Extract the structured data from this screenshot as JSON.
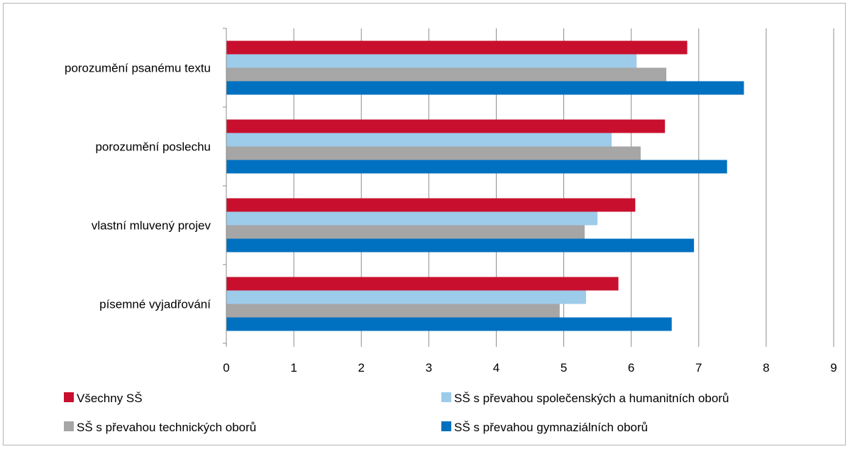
{
  "chart_data": {
    "type": "bar",
    "orientation": "horizontal",
    "title": "",
    "xlabel": "",
    "ylabel": "",
    "categories": [
      "porozumění psanému textu",
      "porozumění poslechu",
      "vlastní mluvený projev",
      "písemné vyjadřování"
    ],
    "series": [
      {
        "name": "Všechny SŠ",
        "color": "#c8102e",
        "values": [
          6.83,
          6.5,
          6.06,
          5.81
        ]
      },
      {
        "name": "SŠ s převahou společenských a humanitních oborů",
        "color": "#9dcbea",
        "values": [
          6.08,
          5.71,
          5.5,
          5.33
        ]
      },
      {
        "name": "SŠ s převahou technických oborů",
        "color": "#a6a6a6",
        "values": [
          6.52,
          6.14,
          5.31,
          4.94
        ]
      },
      {
        "name": "SŠ s převahou gymnaziálních oborů",
        "color": "#0070c0",
        "values": [
          7.67,
          7.42,
          6.93,
          6.6
        ]
      }
    ],
    "xlim": [
      0,
      9
    ],
    "xticks": [
      "0",
      "1",
      "2",
      "3",
      "4",
      "5",
      "6",
      "7",
      "8",
      "9"
    ],
    "grid": true,
    "legend_position": "bottom"
  }
}
